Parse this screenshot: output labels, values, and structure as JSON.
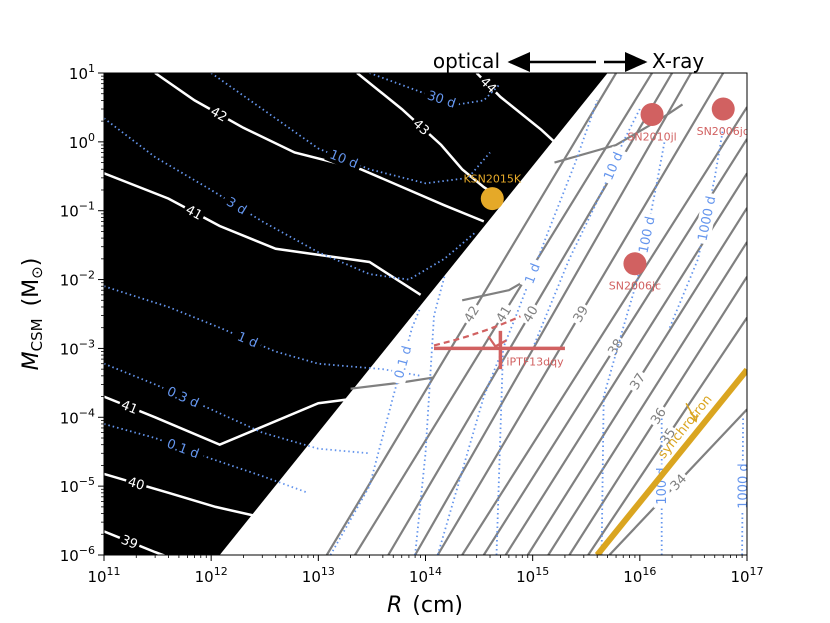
{
  "chart_data": {
    "type": "line",
    "title": "",
    "xlabel": "R",
    "xunit": "(cm)",
    "ylabel_main": "M",
    "ylabel_sub": "CSM",
    "ylabel_unit_open": "(M",
    "ylabel_unit_close": ")",
    "x_scale": "log",
    "y_scale": "log",
    "xlim": [
      100000000000.0,
      1e+17
    ],
    "ylim": [
      1e-06,
      10
    ],
    "x_ticks": [
      {
        "mant": "10",
        "exp": "11",
        "value": 100000000000.0
      },
      {
        "mant": "10",
        "exp": "12",
        "value": 1000000000000.0
      },
      {
        "mant": "10",
        "exp": "13",
        "value": 10000000000000.0
      },
      {
        "mant": "10",
        "exp": "14",
        "value": 100000000000000.0
      },
      {
        "mant": "10",
        "exp": "15",
        "value": 1000000000000000.0
      },
      {
        "mant": "10",
        "exp": "16",
        "value": 1e+16
      },
      {
        "mant": "10",
        "exp": "17",
        "value": 1e+17
      }
    ],
    "y_ticks": [
      {
        "mant": "10",
        "exp": "−6",
        "value": 1e-06
      },
      {
        "mant": "10",
        "exp": "−5",
        "value": 1e-05
      },
      {
        "mant": "10",
        "exp": "−4",
        "value": 0.0001
      },
      {
        "mant": "10",
        "exp": "−3",
        "value": 0.001
      },
      {
        "mant": "10",
        "exp": "−2",
        "value": 0.01
      },
      {
        "mant": "10",
        "exp": "−1",
        "value": 0.1
      },
      {
        "mant": "10",
        "exp": "0",
        "value": 1
      },
      {
        "mant": "10",
        "exp": "1",
        "value": 10
      }
    ],
    "top_annotations": {
      "left": "optical",
      "right": "X-ray"
    },
    "region_boundary": {
      "from": [
        1200000000000.0,
        1e-06
      ],
      "to": [
        5000000000000000.0,
        10
      ]
    },
    "optical_luminosity_contours": [
      {
        "label": "39",
        "points": [
          [
            100000000000.0,
            2.2e-06
          ],
          [
            300000000000.0,
            1.1e-06
          ],
          [
            1000000000000.0,
            5.5e-07
          ]
        ]
      },
      {
        "label": "40",
        "points": [
          [
            100000000000.0,
            1.5e-05
          ],
          [
            400000000000.0,
            8e-06
          ],
          [
            1100000000000.0,
            5e-06
          ],
          [
            3000000000000.0,
            3.5e-06
          ],
          [
            6000000000000.0,
            2.8e-06
          ]
        ]
      },
      {
        "label": "41",
        "points": [
          [
            100000000000.0,
            0.0002
          ],
          [
            300000000000.0,
            0.0001
          ],
          [
            1200000000000.0,
            4e-05
          ],
          [
            10000000000000.0,
            0.00016
          ],
          [
            30000000000000.0,
            0.0002
          ]
        ]
      },
      {
        "label": "41",
        "points": [
          [
            100000000000.0,
            0.35
          ],
          [
            400000000000.0,
            0.15
          ],
          [
            1200000000000.0,
            0.06
          ],
          [
            4000000000000.0,
            0.028
          ],
          [
            30000000000000.0,
            0.018
          ],
          [
            90000000000000.0,
            0.006
          ]
        ]
      },
      {
        "label": "42",
        "points": [
          [
            300000000000.0,
            10
          ],
          [
            700000000000.0,
            4
          ],
          [
            2000000000000.0,
            1.6
          ],
          [
            6000000000000.0,
            0.7
          ],
          [
            25000000000000.0,
            0.4
          ],
          [
            150000000000000.0,
            0.12
          ],
          [
            350000000000000.0,
            0.07
          ]
        ]
      },
      {
        "label": "43",
        "points": [
          [
            23000000000000.0,
            10
          ],
          [
            60000000000000.0,
            3
          ],
          [
            140000000000000.0,
            0.9
          ],
          [
            220000000000000.0,
            0.4
          ],
          [
            350000000000000.0,
            0.22
          ],
          [
            480000000000000.0,
            0.16
          ]
        ]
      },
      {
        "label": "44",
        "points": [
          [
            300000000000000.0,
            10
          ],
          [
            500000000000000.0,
            4.5
          ],
          [
            800000000000000.0,
            2.5
          ],
          [
            1200000000000000.0,
            1.5
          ],
          [
            1600000000000000.0,
            1.0
          ]
        ]
      }
    ],
    "optical_timescale_contours": [
      {
        "label": "0.1 d",
        "points": [
          [
            100000000000.0,
            8e-05
          ],
          [
            300000000000.0,
            5e-05
          ],
          [
            1000000000000.0,
            2.5e-05
          ],
          [
            3000000000000.0,
            1.4e-05
          ],
          [
            8000000000000.0,
            8e-06
          ]
        ]
      },
      {
        "label": "0.3 d",
        "points": [
          [
            100000000000.0,
            0.0006
          ],
          [
            300000000000.0,
            0.0003
          ],
          [
            1000000000000.0,
            0.00013
          ],
          [
            3000000000000.0,
            6e-05
          ],
          [
            10000000000000.0,
            3.5e-05
          ],
          [
            30000000000000.0,
            3e-05
          ]
        ]
      },
      {
        "label": "1 d",
        "points": [
          [
            100000000000.0,
            0.008
          ],
          [
            400000000000.0,
            0.004
          ],
          [
            1200000000000.0,
            0.002
          ],
          [
            4000000000000.0,
            0.0009
          ],
          [
            10000000000000.0,
            0.0006
          ],
          [
            40000000000000.0,
            0.0005
          ],
          [
            90000000000000.0,
            0.0004
          ]
        ]
      },
      {
        "label": "3 d",
        "points": [
          [
            100000000000.0,
            2.2
          ],
          [
            300000000000.0,
            0.6
          ],
          [
            1000000000000.0,
            0.2
          ],
          [
            3000000000000.0,
            0.07
          ],
          [
            10000000000000.0,
            0.025
          ],
          [
            30000000000000.0,
            0.012
          ],
          [
            70000000000000.0,
            0.01
          ],
          [
            150000000000000.0,
            0.02
          ],
          [
            300000000000000.0,
            0.05
          ]
        ]
      },
      {
        "label": "10 d",
        "points": [
          [
            1000000000000.0,
            10
          ],
          [
            3000000000000.0,
            3
          ],
          [
            10000000000000.0,
            0.8
          ],
          [
            30000000000000.0,
            0.4
          ],
          [
            100000000000000.0,
            0.25
          ],
          [
            250000000000000.0,
            0.3
          ],
          [
            400000000000000.0,
            0.7
          ]
        ]
      },
      {
        "label": "30 d",
        "points": [
          [
            30000000000000.0,
            10
          ],
          [
            100000000000000.0,
            5
          ],
          [
            200000000000000.0,
            3.5
          ],
          [
            350000000000000.0,
            4
          ],
          [
            500000000000000.0,
            7
          ]
        ]
      }
    ],
    "xray_luminosity_contours": [
      {
        "label": "34",
        "points": [
          [
            5200000000000000.0,
            1e-06
          ],
          [
            1e+17,
            0.00013
          ]
        ]
      },
      {
        "label": "35",
        "points": [
          [
            3300000000000000.0,
            1e-06
          ],
          [
            1e+17,
            0.0028
          ]
        ]
      },
      {
        "label": "36",
        "points": [
          [
            2200000000000000.0,
            1e-06
          ],
          [
            1e+17,
            0.011
          ]
        ]
      },
      {
        "label": "",
        "points": [
          [
            1400000000000000.0,
            1e-06
          ],
          [
            1e+17,
            0.035
          ]
        ]
      },
      {
        "label": "37",
        "points": [
          [
            900000000000000.0,
            1e-06
          ],
          [
            1e+17,
            0.11
          ]
        ]
      },
      {
        "label": "",
        "points": [
          [
            560000000000000.0,
            1e-06
          ],
          [
            1e+17,
            0.35
          ]
        ]
      },
      {
        "label": "38",
        "points": [
          [
            350000000000000.0,
            1e-06
          ],
          [
            1e+17,
            1.1
          ]
        ]
      },
      {
        "label": "",
        "points": [
          [
            220000000000000.0,
            1e-06
          ],
          [
            1e+17,
            3.2
          ]
        ]
      },
      {
        "label": "39",
        "points": [
          [
            130000000000000.0,
            1e-06
          ],
          [
            6e+16,
            10
          ]
        ]
      },
      {
        "label": "",
        "points": [
          [
            80000000000000.0,
            1e-06
          ],
          [
            3e+16,
            10
          ]
        ]
      },
      {
        "label": "40",
        "points": [
          [
            45000000000000.0,
            1e-06
          ],
          [
            2e+16,
            10
          ]
        ]
      },
      {
        "label": "41",
        "points": [
          [
            22000000000000.0,
            1e-06
          ],
          [
            1.3e+16,
            10
          ]
        ]
      },
      {
        "label": "42",
        "points": [
          [
            12000000000000.0,
            1e-06
          ],
          [
            6000000000000000.0,
            10
          ]
        ]
      }
    ],
    "xray_boundary_arcs": [
      {
        "points": [
          [
            20000000000000.0,
            0.00026
          ],
          [
            60000000000000.0,
            0.00032
          ],
          [
            120000000000000.0,
            0.00038
          ]
        ]
      },
      {
        "points": [
          [
            220000000000000.0,
            0.005
          ],
          [
            600000000000000.0,
            0.007
          ],
          [
            1100000000000000.0,
            0.012
          ]
        ]
      },
      {
        "points": [
          [
            1600000000000000.0,
            0.5
          ],
          [
            6000000000000000.0,
            0.9
          ],
          [
            1.6e+16,
            2.2
          ],
          [
            2.5e+16,
            3.5
          ]
        ]
      }
    ],
    "xray_timescale_contours": [
      {
        "label": "0.1 d",
        "points": [
          [
            13000000000000.0,
            1e-06
          ],
          [
            30000000000000.0,
            1e-05
          ],
          [
            50000000000000.0,
            0.0002
          ],
          [
            75000000000000.0,
            0.002
          ],
          [
            90000000000000.0,
            0.004
          ]
        ]
      },
      {
        "label": "",
        "points": [
          [
            80000000000000.0,
            1e-06
          ],
          [
            100000000000000.0,
            3e-05
          ],
          [
            120000000000000.0,
            0.003
          ],
          [
            150000000000000.0,
            0.011
          ]
        ]
      },
      {
        "label": "1 d",
        "points": [
          [
            130000000000000.0,
            1e-06
          ],
          [
            200000000000000.0,
            1e-05
          ],
          [
            350000000000000.0,
            0.0002
          ],
          [
            700000000000000.0,
            0.003
          ],
          [
            1400000000000000.0,
            0.05
          ],
          [
            2500000000000000.0,
            0.5
          ],
          [
            4000000000000000.0,
            4
          ]
        ]
      },
      {
        "label": "",
        "points": [
          [
            460000000000000.0,
            1e-06
          ],
          [
            530000000000000.0,
            0.001
          ]
        ]
      },
      {
        "label": "10 d",
        "points": [
          [
            1000000000000000.0,
            0.001
          ],
          [
            2200000000000000.0,
            0.02
          ],
          [
            4500000000000000.0,
            0.2
          ],
          [
            7000000000000000.0,
            1
          ],
          [
            1e+16,
            3
          ]
        ]
      },
      {
        "label": "100 d",
        "points": [
          [
            4400000000000000.0,
            1e-06
          ],
          [
            4600000000000000.0,
            0.0002
          ],
          [
            7000000000000000.0,
            0.002
          ],
          [
            9500000000000000.0,
            0.01
          ],
          [
            1.4e+16,
            0.2
          ],
          [
            1.7e+16,
            1.0
          ]
        ]
      },
      {
        "label": "1000 d",
        "points": [
          [
            1.9e+16,
            0.002
          ],
          [
            3.5e+16,
            0.02
          ],
          [
            5e+16,
            0.3
          ],
          [
            6e+16,
            1.6
          ]
        ]
      },
      {
        "label": "100 d",
        "points": [
          [
            1.6e+16,
            1e-06
          ],
          [
            1.6e+16,
            0.0001
          ]
        ]
      },
      {
        "label": "1000 d",
        "points": [
          [
            9e+16,
            1e-06
          ],
          [
            9.2e+16,
            0.0001
          ]
        ]
      }
    ],
    "synchrotron_line": {
      "label": "synchrotron",
      "points": [
        [
          4000000000000000.0,
          1e-06
        ],
        [
          1e+17,
          0.00049
        ]
      ]
    },
    "objects": [
      {
        "name": "KSN2015K",
        "R": 420000000000000.0,
        "M": 0.15,
        "color": "#E5A928"
      },
      {
        "name": "SN2010jl",
        "R": 1.3e+16,
        "M": 2.5,
        "color": "#D16161"
      },
      {
        "name": "SN2006jd",
        "R": 6e+16,
        "M": 3.0,
        "color": "#D16161"
      },
      {
        "name": "SN2006jc",
        "R": 9000000000000000.0,
        "M": 0.017,
        "color": "#D16161"
      }
    ],
    "iptf13dqy": {
      "name": "iPTF13dqy",
      "R": 500000000000000.0,
      "M": 0.001,
      "xerr": [
        120000000000000.0,
        2000000000000000.0
      ],
      "yerr": [
        0.0005,
        0.0018
      ],
      "color": "#D16161"
    },
    "colors": {
      "optical_region": "#000000",
      "optical_lum": "#ffffff",
      "timescale": "#6495ED",
      "xray_lum": "#808080",
      "synchrotron": "#DAA520",
      "objects": "#D16161",
      "ksn": "#E5A928"
    }
  }
}
